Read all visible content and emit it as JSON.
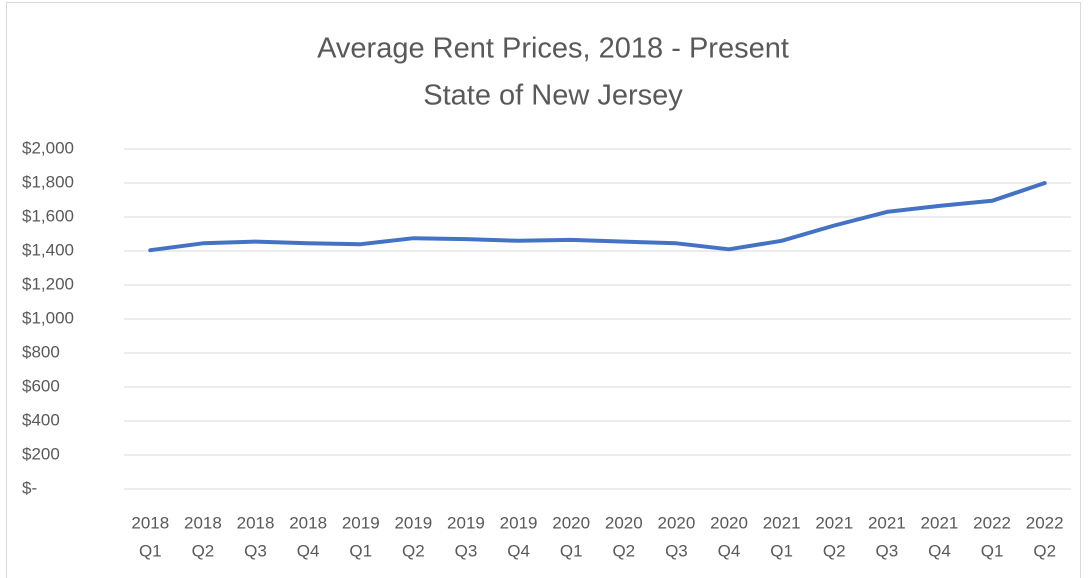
{
  "chart_data": {
    "type": "line",
    "title": "Average Rent Prices, 2018 - Present",
    "subtitle": "State of New Jersey",
    "categories": [
      [
        "2018",
        "Q1"
      ],
      [
        "2018",
        "Q2"
      ],
      [
        "2018",
        "Q3"
      ],
      [
        "2018",
        "Q4"
      ],
      [
        "2019",
        "Q1"
      ],
      [
        "2019",
        "Q2"
      ],
      [
        "2019",
        "Q3"
      ],
      [
        "2019",
        "Q4"
      ],
      [
        "2020",
        "Q1"
      ],
      [
        "2020",
        "Q2"
      ],
      [
        "2020",
        "Q3"
      ],
      [
        "2020",
        "Q4"
      ],
      [
        "2021",
        "Q1"
      ],
      [
        "2021",
        "Q2"
      ],
      [
        "2021",
        "Q3"
      ],
      [
        "2021",
        "Q4"
      ],
      [
        "2022",
        "Q1"
      ],
      [
        "2022",
        "Q2"
      ]
    ],
    "values": [
      1405,
      1445,
      1455,
      1445,
      1440,
      1475,
      1470,
      1460,
      1465,
      1455,
      1445,
      1410,
      1460,
      1550,
      1630,
      1665,
      1695,
      1800
    ],
    "color": "#4472c4",
    "ylim": [
      0,
      2000
    ],
    "yticks": [
      {
        "value": 0,
        "label": "$-"
      },
      {
        "value": 200,
        "label": "$200"
      },
      {
        "value": 400,
        "label": "$400"
      },
      {
        "value": 600,
        "label": "$600"
      },
      {
        "value": 800,
        "label": "$800"
      },
      {
        "value": 1000,
        "label": "$1,000"
      },
      {
        "value": 1200,
        "label": "$1,200"
      },
      {
        "value": 1400,
        "label": "$1,400"
      },
      {
        "value": 1600,
        "label": "$1,600"
      },
      {
        "value": 1800,
        "label": "$1,800"
      },
      {
        "value": 2000,
        "label": "$2,000"
      }
    ],
    "grid": true
  }
}
